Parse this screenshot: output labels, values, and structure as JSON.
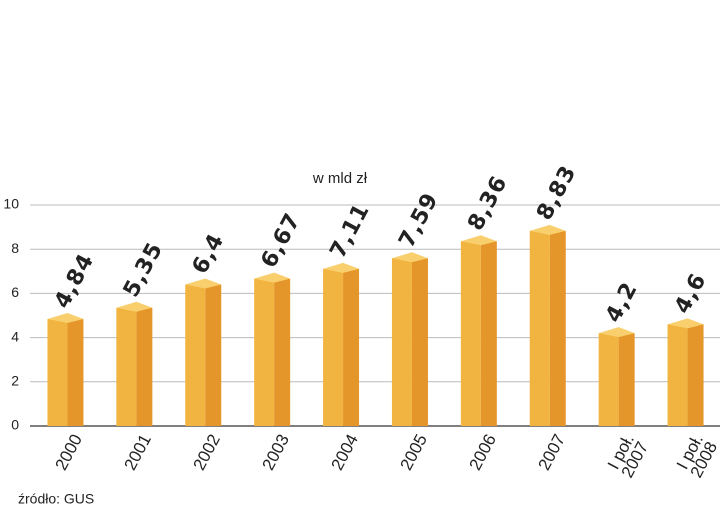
{
  "chart_data": {
    "type": "bar",
    "title": "w mld zł",
    "categories": [
      "2000",
      "2001",
      "2002",
      "2003",
      "2004",
      "2005",
      "2006",
      "2007",
      "I poł. 2007",
      "I poł. 2008"
    ],
    "values": [
      4.84,
      5.35,
      6.4,
      6.67,
      7.11,
      7.59,
      8.36,
      8.83,
      4.2,
      4.6
    ],
    "value_labels": [
      "4,84",
      "5,35",
      "6,4",
      "6,67",
      "7,11",
      "7,59",
      "8,36",
      "8,83",
      "4,2",
      "4,6"
    ],
    "color": "#f2b440",
    "ylim": [
      0,
      10
    ],
    "yticks": [
      0,
      2,
      4,
      6,
      8,
      10
    ],
    "grid": true,
    "source": "źródło: GUS"
  }
}
